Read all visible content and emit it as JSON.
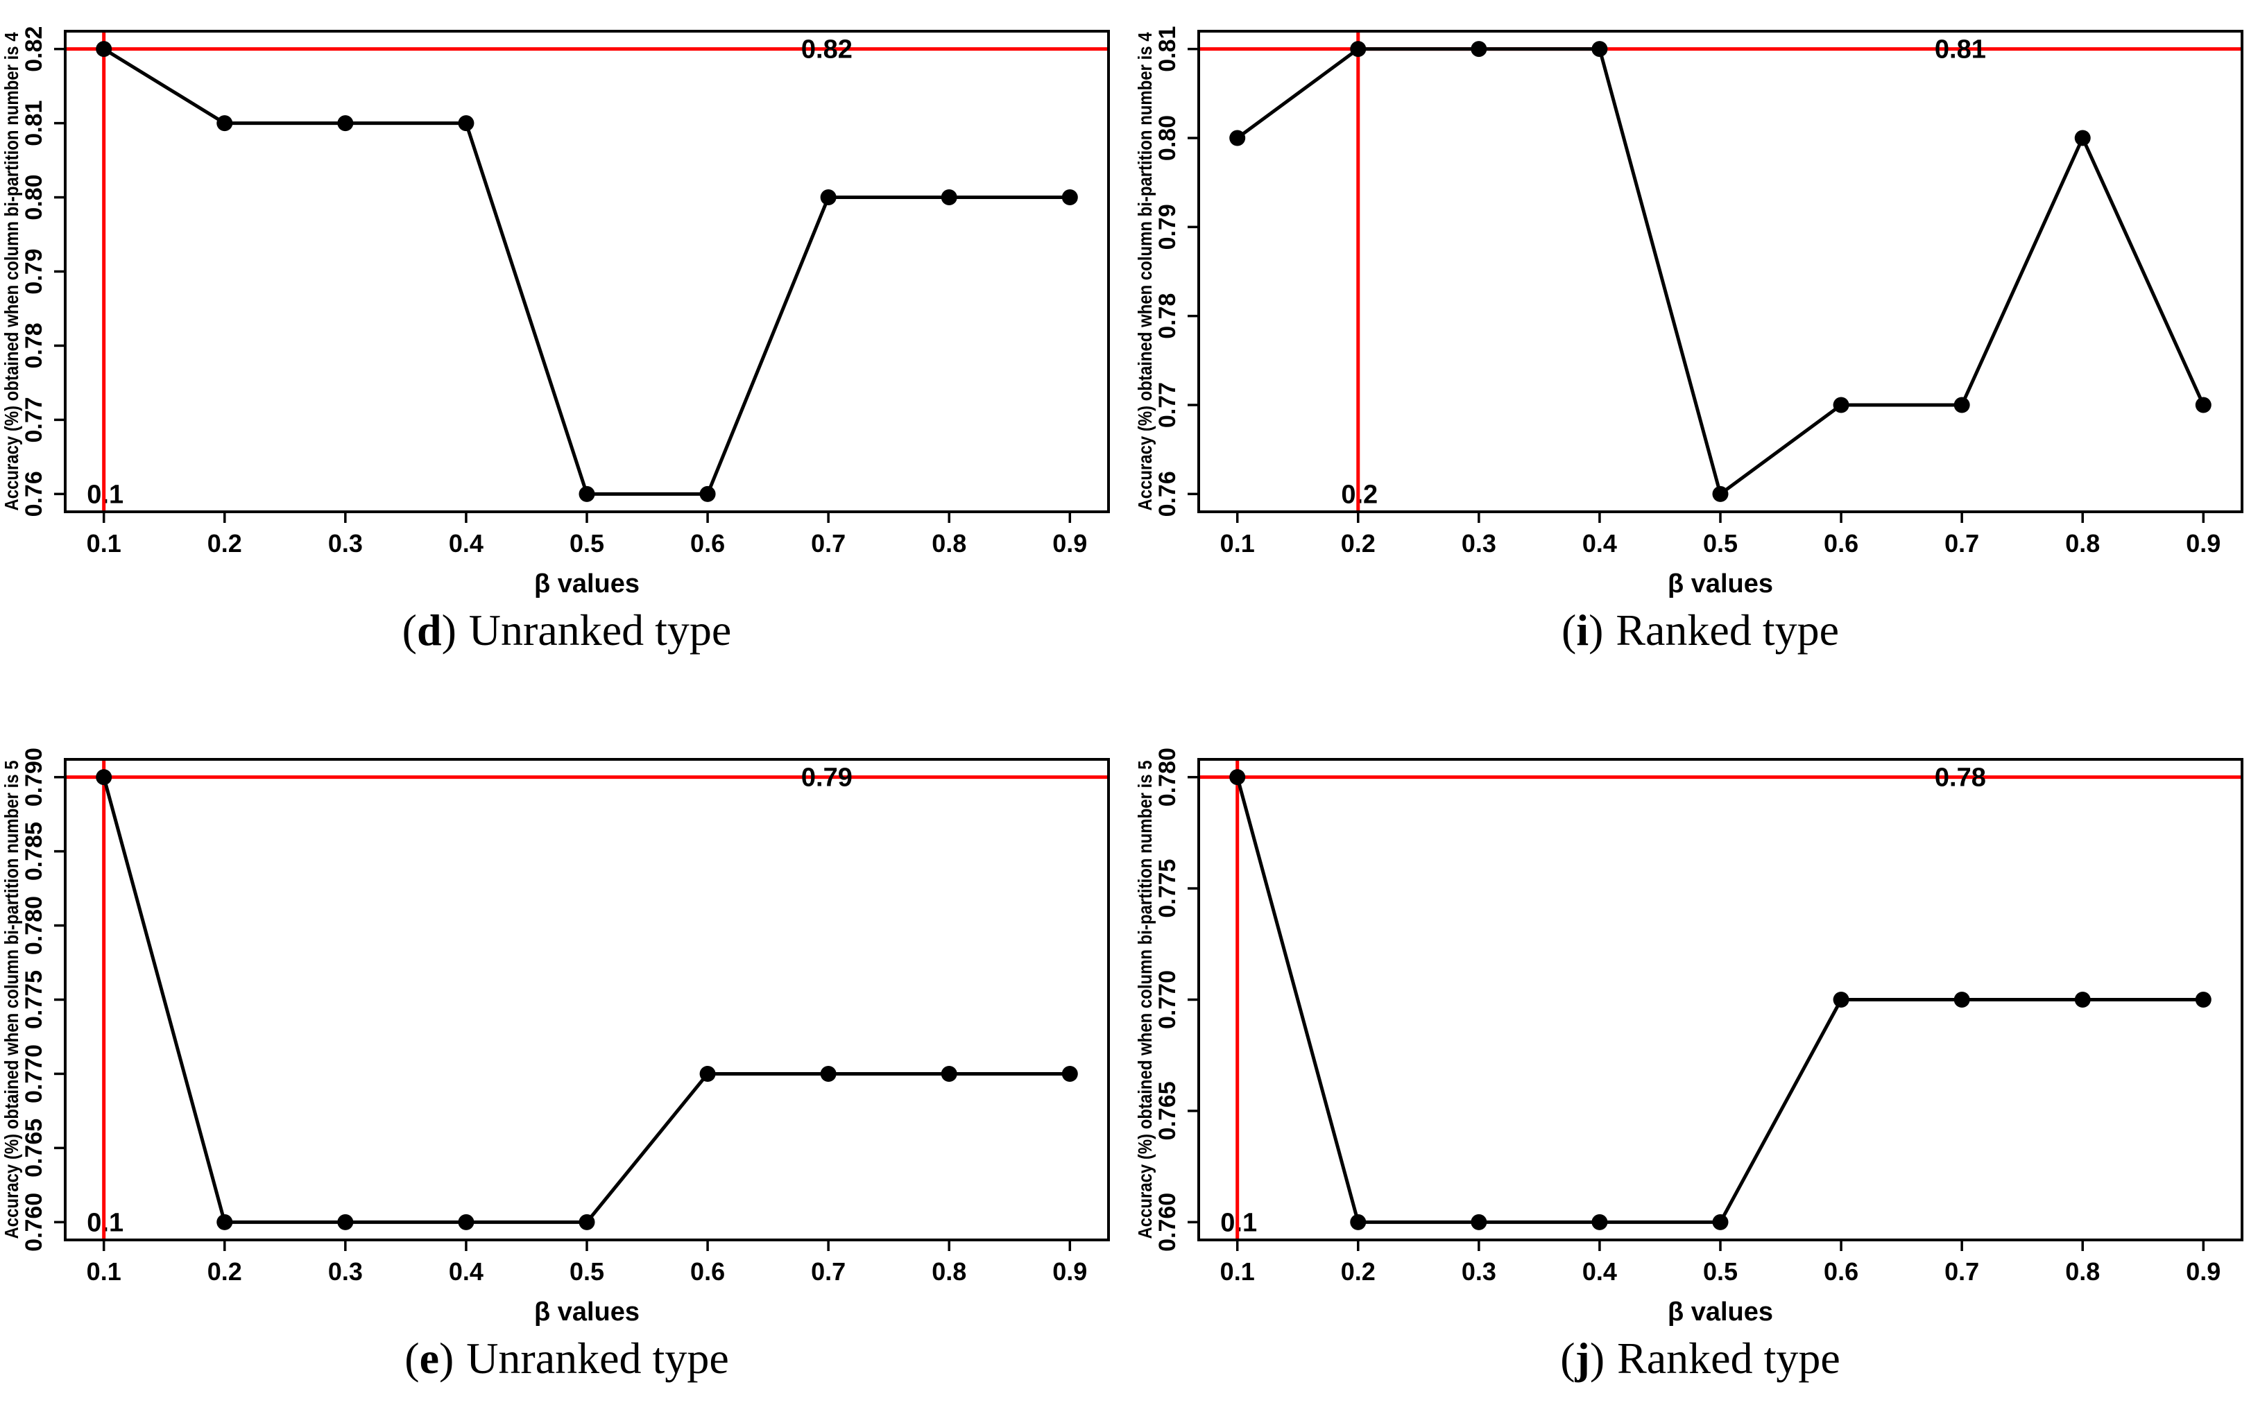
{
  "colors": {
    "series": "#000000",
    "reference": "#FF0000"
  },
  "chart_data": [
    {
      "panel": "d",
      "type": "line",
      "x": [
        0.1,
        0.2,
        0.3,
        0.4,
        0.5,
        0.6,
        0.7,
        0.8,
        0.9
      ],
      "xtick_labels": [
        "0.1",
        "0.2",
        "0.3",
        "0.4",
        "0.5",
        "0.6",
        "0.7",
        "0.8",
        "0.9"
      ],
      "values": [
        0.82,
        0.81,
        0.81,
        0.81,
        0.76,
        0.76,
        0.8,
        0.8,
        0.8
      ],
      "xlabel": "β values",
      "ylabel": "Accuracy (%) obtained when column bi-partition number is 4",
      "yticks": [
        0.76,
        0.77,
        0.78,
        0.79,
        0.8,
        0.81,
        0.82
      ],
      "ytick_labels": [
        "0.76",
        "0.77",
        "0.78",
        "0.79",
        "0.80",
        "0.81",
        "0.82"
      ],
      "xlim": [
        0.068,
        0.932
      ],
      "ylim": [
        0.7576,
        0.8224
      ],
      "grid": false,
      "legend": "none",
      "hline": {
        "y": 0.82,
        "label": "0.82"
      },
      "vline": {
        "x": 0.1,
        "label": "0.1"
      },
      "caption": {
        "open": "(",
        "letter": "d",
        "close": ")",
        "text": "Unranked type"
      }
    },
    {
      "panel": "i",
      "type": "line",
      "x": [
        0.1,
        0.2,
        0.3,
        0.4,
        0.5,
        0.6,
        0.7,
        0.8,
        0.9
      ],
      "xtick_labels": [
        "0.1",
        "0.2",
        "0.3",
        "0.4",
        "0.5",
        "0.6",
        "0.7",
        "0.8",
        "0.9"
      ],
      "values": [
        0.8,
        0.81,
        0.81,
        0.81,
        0.76,
        0.77,
        0.77,
        0.8,
        0.77
      ],
      "xlabel": "β values",
      "ylabel": "Accuracy (%) obtained when column bi-partition number is 4",
      "yticks": [
        0.76,
        0.77,
        0.78,
        0.79,
        0.8,
        0.81
      ],
      "ytick_labels": [
        "0.76",
        "0.77",
        "0.78",
        "0.79",
        "0.80",
        "0.81"
      ],
      "xlim": [
        0.068,
        0.932
      ],
      "ylim": [
        0.758,
        0.812
      ],
      "grid": false,
      "legend": "none",
      "hline": {
        "y": 0.81,
        "label": "0.81"
      },
      "vline": {
        "x": 0.2,
        "label": "0.2"
      },
      "caption": {
        "open": "(",
        "letter": "i",
        "close": ")",
        "text": "Ranked type"
      }
    },
    {
      "panel": "e",
      "type": "line",
      "x": [
        0.1,
        0.2,
        0.3,
        0.4,
        0.5,
        0.6,
        0.7,
        0.8,
        0.9
      ],
      "xtick_labels": [
        "0.1",
        "0.2",
        "0.3",
        "0.4",
        "0.5",
        "0.6",
        "0.7",
        "0.8",
        "0.9"
      ],
      "values": [
        0.79,
        0.76,
        0.76,
        0.76,
        0.76,
        0.77,
        0.77,
        0.77,
        0.77
      ],
      "xlabel": "β values",
      "ylabel": "Accuracy (%) obtained when column bi-partition number is 5",
      "yticks": [
        0.76,
        0.765,
        0.77,
        0.775,
        0.78,
        0.785,
        0.79
      ],
      "ytick_labels": [
        "0.760",
        "0.765",
        "0.770",
        "0.775",
        "0.780",
        "0.785",
        "0.790"
      ],
      "xlim": [
        0.068,
        0.932
      ],
      "ylim": [
        0.7588,
        0.7912
      ],
      "grid": false,
      "legend": "none",
      "hline": {
        "y": 0.79,
        "label": "0.79"
      },
      "vline": {
        "x": 0.1,
        "label": "0.1"
      },
      "caption": {
        "open": "(",
        "letter": "e",
        "close": ")",
        "text": "Unranked type"
      }
    },
    {
      "panel": "j",
      "type": "line",
      "x": [
        0.1,
        0.2,
        0.3,
        0.4,
        0.5,
        0.6,
        0.7,
        0.8,
        0.9
      ],
      "xtick_labels": [
        "0.1",
        "0.2",
        "0.3",
        "0.4",
        "0.5",
        "0.6",
        "0.7",
        "0.8",
        "0.9"
      ],
      "values": [
        0.78,
        0.76,
        0.76,
        0.76,
        0.76,
        0.77,
        0.77,
        0.77,
        0.77
      ],
      "xlabel": "β values",
      "ylabel": "Accuracy (%) obtained when column bi-partition number is 5",
      "yticks": [
        0.76,
        0.765,
        0.77,
        0.775,
        0.78
      ],
      "ytick_labels": [
        "0.760",
        "0.765",
        "0.770",
        "0.775",
        "0.780"
      ],
      "xlim": [
        0.068,
        0.932
      ],
      "ylim": [
        0.7592,
        0.7808
      ],
      "grid": false,
      "legend": "none",
      "hline": {
        "y": 0.78,
        "label": "0.78"
      },
      "vline": {
        "x": 0.1,
        "label": "0.1"
      },
      "caption": {
        "open": "(",
        "letter": "j",
        "close": ")",
        "text": "Ranked type"
      }
    }
  ]
}
